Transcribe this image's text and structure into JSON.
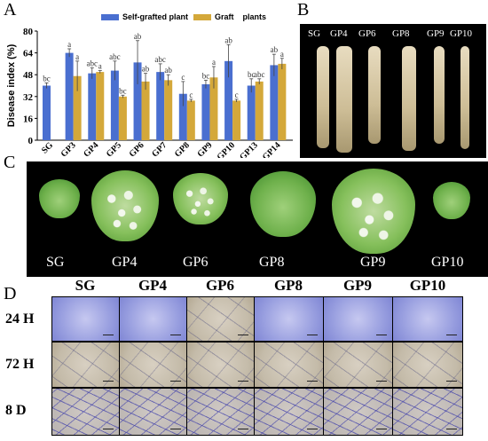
{
  "panels": {
    "a": "A",
    "b": "B",
    "c": "C",
    "d": "D"
  },
  "chart_data": {
    "type": "bar",
    "ylabel": "Disease index (%)",
    "ylim": [
      0,
      80
    ],
    "yticks": [
      "0",
      "16",
      "32",
      "48",
      "64",
      "80"
    ],
    "grid": false,
    "legend_position": "top",
    "categories": [
      "SG",
      "GP3",
      "GP4",
      "GP5",
      "GP6",
      "GP7",
      "GP8",
      "GP9",
      "GP10",
      "GP13",
      "GP14"
    ],
    "series": [
      {
        "name": "Self-grafted plant",
        "color": "#4a6fd0",
        "values": [
          40,
          64,
          49,
          51,
          57,
          50,
          34,
          41,
          58,
          40,
          55
        ],
        "errors": [
          2,
          3,
          4,
          7,
          16,
          6,
          9,
          3,
          12,
          5,
          8
        ],
        "letters": [
          "bc",
          "a",
          "abc",
          "abc",
          "ab",
          "abc",
          "c",
          "bc",
          "ab",
          "bc",
          "ab"
        ]
      },
      {
        "name": "Graft    plants",
        "color": "#d4a83a",
        "values": [
          null,
          47,
          50,
          32,
          43,
          44,
          29,
          46,
          29,
          43,
          56
        ],
        "errors": [
          0,
          11,
          1,
          1,
          6,
          4,
          1,
          8,
          1,
          2,
          4
        ],
        "letters": [
          "",
          "a",
          "a",
          "bc",
          "ab",
          "ab",
          "c",
          "a",
          "c",
          "abc",
          "a"
        ]
      }
    ]
  },
  "panel_b": {
    "labels": [
      "SG",
      "GP4",
      "GP6",
      "GP8",
      "GP9",
      "GP10"
    ]
  },
  "panel_c": {
    "labels": [
      "SG",
      "GP4",
      "GP6",
      "GP8",
      "GP9",
      "GP10"
    ]
  },
  "panel_d": {
    "columns": [
      "SG",
      "GP4",
      "GP6",
      "GP8",
      "GP9",
      "GP10"
    ],
    "rows": [
      "24 H",
      "72 H",
      "8 D"
    ]
  }
}
